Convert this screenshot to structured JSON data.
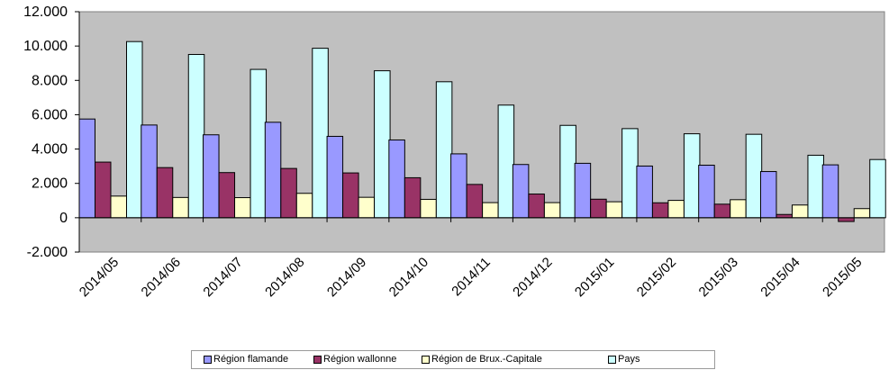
{
  "chart_data": {
    "type": "bar",
    "categories": [
      "2014/05",
      "2014/06",
      "2014/07",
      "2014/08",
      "2014/09",
      "2014/10",
      "2014/11",
      "2014/12",
      "2015/01",
      "2015/02",
      "2015/03",
      "2015/04",
      "2015/05"
    ],
    "series": [
      {
        "name": "Région flamande",
        "color": "#9999ff",
        "values": [
          5750,
          5400,
          4830,
          5560,
          4740,
          4530,
          3720,
          3100,
          3170,
          3010,
          3060,
          2690,
          3080
        ]
      },
      {
        "name": "Région wallonne",
        "color": "#993366",
        "values": [
          3240,
          2920,
          2630,
          2870,
          2610,
          2330,
          1940,
          1380,
          1080,
          870,
          790,
          190,
          -220
        ]
      },
      {
        "name": "Région de Brux.-Capitale",
        "color": "#ffffcc",
        "values": [
          1260,
          1180,
          1170,
          1420,
          1190,
          1070,
          880,
          880,
          930,
          1010,
          1050,
          740,
          530
        ]
      },
      {
        "name": "Pays",
        "color": "#ccffff",
        "values": [
          10260,
          9510,
          8640,
          9870,
          8560,
          7920,
          6560,
          5380,
          5190,
          4890,
          4860,
          3640,
          3390
        ]
      }
    ],
    "ylim": [
      -2000,
      12000
    ],
    "yticks": [
      "-2.000",
      "0",
      "2.000",
      "4.000",
      "6.000",
      "8.000",
      "10.000",
      "12.000"
    ],
    "ytick_values": [
      -2000,
      0,
      2000,
      4000,
      6000,
      8000,
      10000,
      12000
    ],
    "plot_background": "#c0c0c0",
    "grid": false,
    "legend_position": "bottom"
  }
}
